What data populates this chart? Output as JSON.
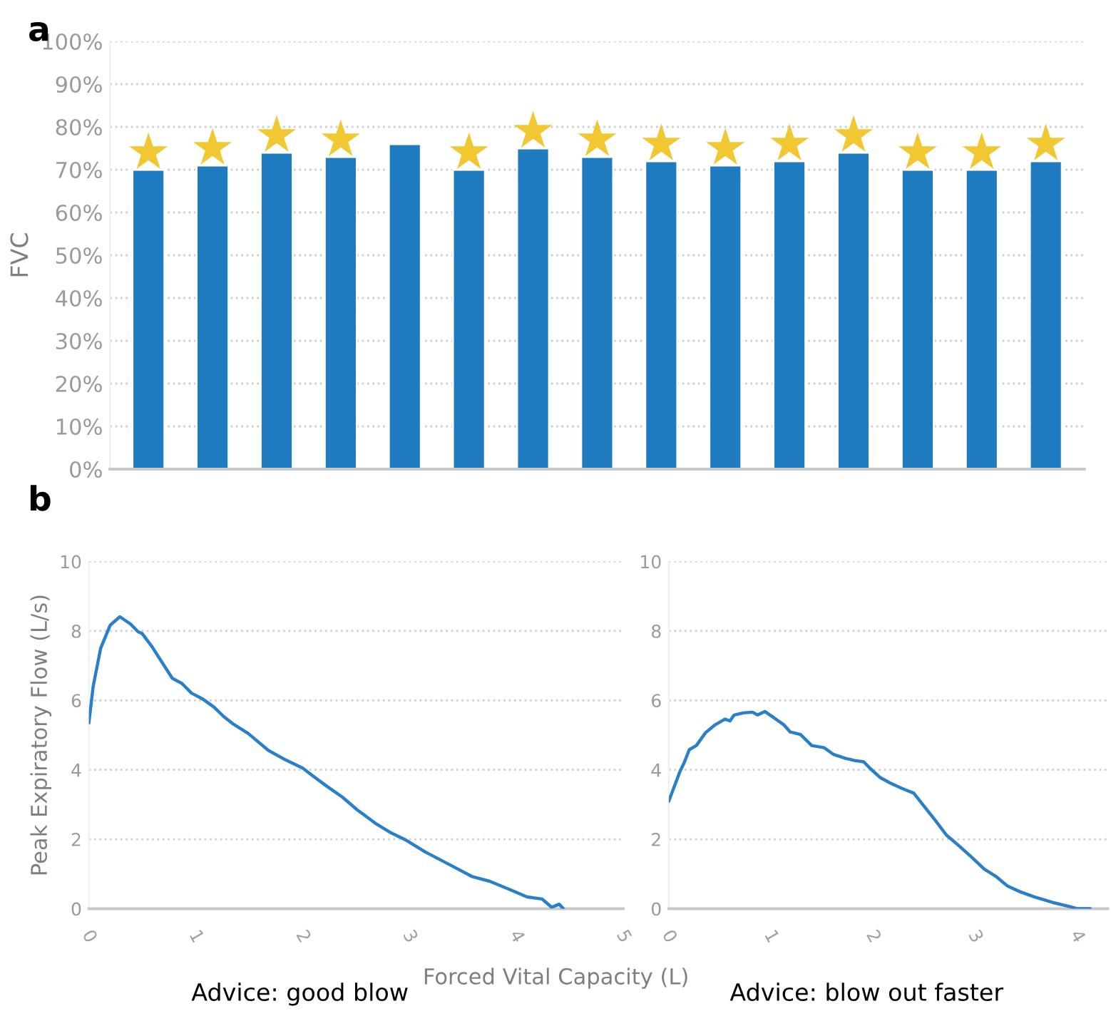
{
  "chart_data": [
    {
      "type": "bar",
      "ylabel": "FVC",
      "annotations": [
        "a"
      ],
      "categories": [
        null,
        null,
        null,
        null,
        null,
        null,
        null,
        null,
        null,
        null,
        null,
        null,
        null,
        null,
        null
      ],
      "series": [
        {
          "type": "bar",
          "color": "#1f7bbf",
          "values": [
            70,
            71,
            74,
            73,
            76,
            70,
            75,
            73,
            72,
            71,
            72,
            74,
            70,
            70,
            72
          ]
        },
        {
          "type": "scatter",
          "marker": "star",
          "color": "#f2c832",
          "values": [
            74,
            75,
            78,
            77,
            null,
            74,
            79,
            77,
            76,
            75,
            76,
            78,
            74,
            74,
            76
          ]
        }
      ],
      "ylim": [
        0,
        100
      ],
      "yticks": [
        {
          "value": 0,
          "label": "0%"
        },
        {
          "value": 10,
          "label": "10%"
        },
        {
          "value": 20,
          "label": "20%"
        },
        {
          "value": 30,
          "label": "30%"
        },
        {
          "value": 40,
          "label": "40%"
        },
        {
          "value": 50,
          "label": "50%"
        },
        {
          "value": 60,
          "label": "60%"
        },
        {
          "value": 70,
          "label": "70%"
        },
        {
          "value": 80,
          "label": "80%"
        },
        {
          "value": 90,
          "label": "90%"
        },
        {
          "value": 100,
          "label": "100%"
        }
      ],
      "grid": "y",
      "legend": false
    },
    {
      "type": "line",
      "ylabel": "Peak Expiratory Flow (L/s)",
      "xlabel": "Forced Vital Capacity (L)",
      "annotations": [
        "b",
        "Advice: good blow"
      ],
      "series": [
        {
          "color": "#2a7fca",
          "x": [
            0,
            0.04,
            0.11,
            0.2,
            0.29,
            0.39,
            0.46,
            0.5,
            0.59,
            0.69,
            0.78,
            0.87,
            0.96,
            1.06,
            1.17,
            1.26,
            1.35,
            1.49,
            1.68,
            1.82,
            2.0,
            2.12,
            2.23,
            2.37,
            2.51,
            2.69,
            2.83,
            2.97,
            3.15,
            3.38,
            3.59,
            3.75,
            3.94,
            4.1,
            4.24,
            4.33,
            4.4,
            4.44
          ],
          "values": [
            5.35,
            6.4,
            7.5,
            8.17,
            8.41,
            8.2,
            7.98,
            7.92,
            7.55,
            7.07,
            6.64,
            6.49,
            6.21,
            6.05,
            5.81,
            5.54,
            5.32,
            5.05,
            4.56,
            4.32,
            4.05,
            3.77,
            3.52,
            3.22,
            2.85,
            2.44,
            2.18,
            1.97,
            1.63,
            1.26,
            0.92,
            0.79,
            0.55,
            0.34,
            0.28,
            0.04,
            0.13,
            0
          ]
        }
      ],
      "xlim": [
        0,
        5
      ],
      "xticks": [
        0,
        1,
        2,
        3,
        4,
        5
      ],
      "ylim": [
        0,
        10
      ],
      "yticks": [
        0,
        2,
        4,
        6,
        8,
        10
      ],
      "grid": "y",
      "legend": false,
      "marker": "none",
      "line_style": "solid"
    },
    {
      "type": "line",
      "annotations": [
        "Advice: blow out faster"
      ],
      "series": [
        {
          "color": "#2a7fca",
          "x": [
            0,
            0.11,
            0.15,
            0.2,
            0.27,
            0.36,
            0.45,
            0.55,
            0.6,
            0.64,
            0.73,
            0.82,
            0.87,
            0.94,
            1.03,
            1.13,
            1.19,
            1.29,
            1.4,
            1.52,
            1.61,
            1.73,
            1.82,
            1.91,
            1.98,
            2.07,
            2.17,
            2.28,
            2.4,
            2.51,
            2.61,
            2.72,
            2.84,
            2.98,
            3.09,
            3.21,
            3.32,
            3.44,
            3.58,
            3.76,
            3.93,
            4.0,
            4.13
          ],
          "values": [
            3.1,
            3.96,
            4.2,
            4.58,
            4.7,
            5.07,
            5.29,
            5.46,
            5.41,
            5.58,
            5.64,
            5.66,
            5.58,
            5.68,
            5.5,
            5.29,
            5.09,
            5.02,
            4.7,
            4.64,
            4.45,
            4.33,
            4.27,
            4.23,
            4.02,
            3.78,
            3.62,
            3.47,
            3.33,
            2.92,
            2.55,
            2.12,
            1.82,
            1.45,
            1.14,
            0.92,
            0.65,
            0.49,
            0.34,
            0.18,
            0.06,
            0,
            0
          ]
        }
      ],
      "xlim": [
        0,
        4.3
      ],
      "xticks": [
        0,
        1,
        2,
        3,
        4
      ],
      "ylim": [
        0,
        10
      ],
      "yticks": [
        0,
        2,
        4,
        6,
        8,
        10
      ],
      "grid": "y",
      "legend": false,
      "marker": "none",
      "line_style": "solid"
    }
  ]
}
